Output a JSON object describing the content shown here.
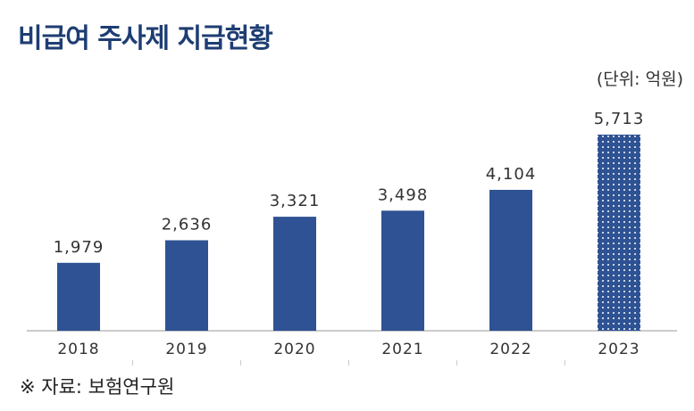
{
  "title": "비급여 주사제 지급현황",
  "unit": "(단위: 억원)",
  "source": "※ 자료:  보험연구원",
  "chart_data": {
    "type": "bar",
    "title": "비급여 주사제 지급현황",
    "xlabel": "",
    "ylabel": "",
    "ylim": [
      0,
      6000
    ],
    "categories": [
      "2018",
      "2019",
      "2020",
      "2021",
      "2022",
      "2023"
    ],
    "values": [
      1979,
      2636,
      3321,
      3498,
      4104,
      5713
    ],
    "value_labels": [
      "1,979",
      "2,636",
      "3,321",
      "3,498",
      "4,104",
      "5,713"
    ],
    "projected": [
      false,
      false,
      false,
      false,
      false,
      true
    ],
    "bar_color": "#2e5293",
    "axis_color": "#bbbbbb",
    "grid": false
  }
}
